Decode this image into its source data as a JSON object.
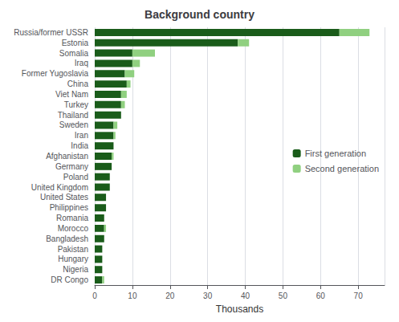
{
  "chart_data": {
    "type": "bar",
    "orientation": "horizontal",
    "stacked": true,
    "title": "Background country",
    "xlabel": "Thousands",
    "categories": [
      "Russia/former USSR",
      "Estonia",
      "Somalia",
      "Iraq",
      "Former Yugoslavia",
      "China",
      "Viet Nam",
      "Turkey",
      "Thailand",
      "Sweden",
      "Iran",
      "India",
      "Afghanistan",
      "Germany",
      "Poland",
      "United Kingdom",
      "United States",
      "Philippines",
      "Romania",
      "Morocco",
      "Bangladesh",
      "Pakistan",
      "Hungary",
      "Nigeria",
      "DR Congo"
    ],
    "series": [
      {
        "name": "First generation",
        "color": "#1a5c1a",
        "values": [
          65,
          38,
          10,
          10,
          8,
          8.5,
          7,
          7,
          7,
          5,
          5,
          5,
          4.5,
          4.5,
          4,
          4,
          3,
          3,
          2.5,
          2.5,
          2.5,
          2,
          2,
          2,
          2
        ]
      },
      {
        "name": "Second generation",
        "color": "#90d080",
        "values": [
          8,
          3,
          6,
          2,
          2.5,
          1,
          1.5,
          1,
          0,
          1,
          0.5,
          0,
          0.5,
          0,
          0,
          0,
          0,
          0,
          0,
          0.5,
          0,
          0,
          0,
          0,
          0.5
        ]
      }
    ],
    "xlim": [
      0,
      77
    ],
    "xticks": [
      0,
      10,
      20,
      30,
      40,
      50,
      60,
      70
    ],
    "grid": true,
    "legend": "right"
  }
}
